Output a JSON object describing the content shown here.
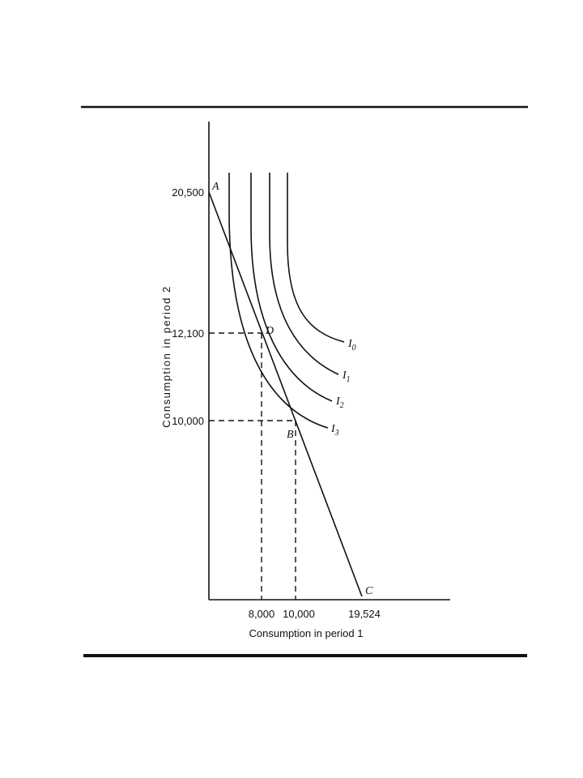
{
  "diagram": {
    "y_axis_label": "Consumption in period 2",
    "x_axis_label": "Consumption in period 1",
    "y_ticks": [
      "20,500",
      "12,100",
      "10,000"
    ],
    "x_ticks": [
      "8,000",
      "10,000",
      "19,524"
    ],
    "points": [
      "A",
      "D",
      "B",
      "C"
    ],
    "curves": [
      {
        "letter": "I",
        "subscript": "0"
      },
      {
        "letter": "I",
        "subscript": "1"
      },
      {
        "letter": "I",
        "subscript": "2"
      },
      {
        "letter": "I",
        "subscript": "3"
      }
    ]
  }
}
